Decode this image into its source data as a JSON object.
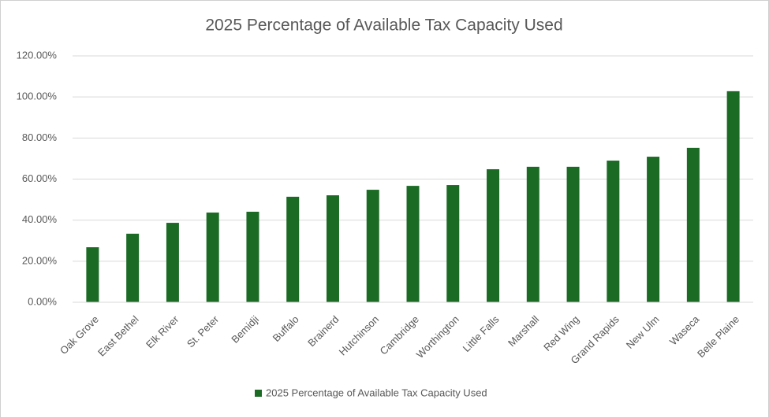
{
  "chart_data": {
    "type": "bar",
    "title": "2025 Percentage of Available Tax Capacity Used",
    "categories": [
      "Oak Grove",
      "East Bethel",
      "Elk River",
      "St. Peter",
      "Bemidji",
      "Buffalo",
      "Brainerd",
      "Hutchinson",
      "Cambridge",
      "Worthington",
      "Little Falls",
      "Marshall",
      "Red Wing",
      "Grand Rapids",
      "New Ulm",
      "Waseca",
      "Belle Plaine"
    ],
    "series": [
      {
        "name": "2025 Percentage of Available Tax Capacity Used",
        "color": "#1b6b25",
        "values": [
          26.8,
          33.4,
          38.7,
          43.7,
          44.1,
          51.4,
          52.1,
          54.8,
          56.7,
          57.1,
          64.8,
          66.0,
          66.0,
          69.0,
          70.9,
          75.2,
          102.8
        ]
      }
    ],
    "ylim": [
      0,
      120
    ],
    "yticks": [
      {
        "value": 0,
        "label": "0.00%"
      },
      {
        "value": 20,
        "label": "20.00%"
      },
      {
        "value": 40,
        "label": "40.00%"
      },
      {
        "value": 60,
        "label": "60.00%"
      },
      {
        "value": 80,
        "label": "80.00%"
      },
      {
        "value": 100,
        "label": "100.00%"
      },
      {
        "value": 120,
        "label": "120.00%"
      }
    ],
    "grid": true,
    "legend": "bottom"
  }
}
